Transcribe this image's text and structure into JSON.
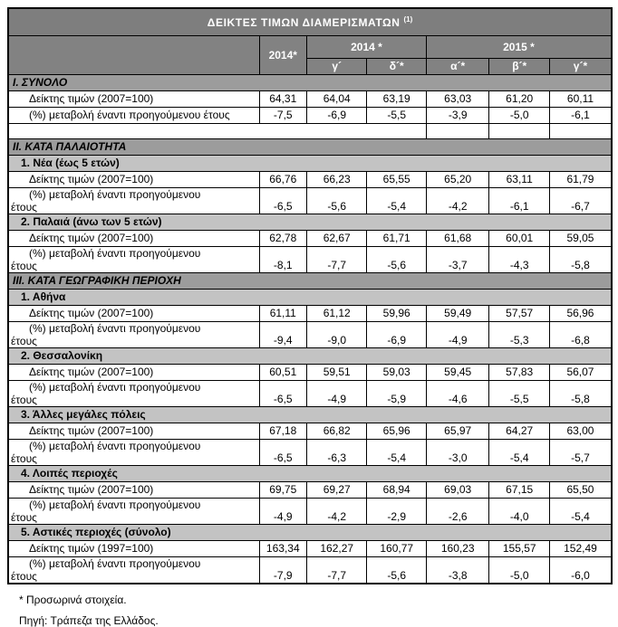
{
  "title": "ΔΕΙΚΤΕΣ  ΤΙΜΩΝ ΔΙΑΜΕΡΙΣΜΑΤΩΝ",
  "title_ref": "(1)",
  "columns": {
    "annual_2014": "2014*",
    "group_2014": "2014 *",
    "group_2015": "2015 *",
    "quarters": [
      "γ´",
      "δ´*",
      "α´*",
      "β´*",
      "γ´*"
    ]
  },
  "rows": [
    {
      "type": "section",
      "label": "Ι. ΣΥΝΟΛΟ"
    },
    {
      "type": "index",
      "label": "Δείκτης τιμών (2007=100)",
      "values": [
        "64,31",
        "64,04",
        "63,19",
        "63,03",
        "61,20",
        "60,11"
      ]
    },
    {
      "type": "pct1",
      "label": "(%) μεταβολή έναντι προηγούμενου έτους",
      "values": [
        "-7,5",
        "-6,9",
        "-5,5",
        "-3,9",
        "-5,0",
        "-6,1"
      ]
    },
    {
      "type": "spacer"
    },
    {
      "type": "section",
      "label": "ΙΙ. ΚΑΤΑ ΠΑΛΑΙΟΤΗΤΑ"
    },
    {
      "type": "subsection",
      "label": "1.  Νέα (έως 5 ετών)"
    },
    {
      "type": "index",
      "label": "Δείκτης τιμών (2007=100)",
      "values": [
        "66,76",
        "66,23",
        "65,55",
        "65,20",
        "63,11",
        "61,79"
      ]
    },
    {
      "type": "pct2",
      "label": "(%) μεταβολή έναντι προηγούμενου",
      "label2": "έτους",
      "values": [
        "-6,5",
        "-5,6",
        "-5,4",
        "-4,2",
        "-6,1",
        "-6,7"
      ]
    },
    {
      "type": "subsection",
      "label": "2. Παλαιά (άνω των 5 ετών)"
    },
    {
      "type": "index",
      "label": "Δείκτης τιμών (2007=100)",
      "values": [
        "62,78",
        "62,67",
        "61,71",
        "61,68",
        "60,01",
        "59,05"
      ]
    },
    {
      "type": "pct2",
      "label": "(%) μεταβολή έναντι προηγούμενου",
      "label2": "έτους",
      "values": [
        "-8,1",
        "-7,7",
        "-5,6",
        "-3,7",
        "-4,3",
        "-5,8"
      ]
    },
    {
      "type": "section",
      "label": "ΙΙΙ. ΚΑΤΑ ΓΕΩΓΡΑΦΙΚΗ ΠΕΡΙΟΧΗ"
    },
    {
      "type": "subsection",
      "label": "1.  Αθήνα"
    },
    {
      "type": "index",
      "label": "Δείκτης τιμών (2007=100)",
      "values": [
        "61,11",
        "61,12",
        "59,96",
        "59,49",
        "57,57",
        "56,96"
      ]
    },
    {
      "type": "pct2",
      "label": "(%) μεταβολή έναντι προηγούμενου",
      "label2": "έτους",
      "values": [
        "-9,4",
        "-9,0",
        "-6,9",
        "-4,9",
        "-5,3",
        "-6,8"
      ]
    },
    {
      "type": "subsection",
      "label": "2.  Θεσσαλονίκη"
    },
    {
      "type": "index",
      "label": "Δείκτης τιμών (2007=100)",
      "values": [
        "60,51",
        "59,51",
        "59,03",
        "59,45",
        "57,83",
        "56,07"
      ]
    },
    {
      "type": "pct2",
      "label": "(%) μεταβολή έναντι προηγούμενου",
      "label2": "έτους",
      "values": [
        "-6,5",
        "-4,9",
        "-5,9",
        "-4,6",
        "-5,5",
        "-5,8"
      ]
    },
    {
      "type": "subsection",
      "label": "3.  Άλλες μεγάλες πόλεις"
    },
    {
      "type": "index",
      "label": "Δείκτης τιμών (2007=100)",
      "values": [
        "67,18",
        "66,82",
        "65,96",
        "65,97",
        "64,27",
        "63,00"
      ]
    },
    {
      "type": "pct2",
      "label": "(%) μεταβολή έναντι προηγούμενου",
      "label2": "έτους",
      "values": [
        "-6,5",
        "-6,3",
        "-5,4",
        "-3,0",
        "-5,4",
        "-5,7"
      ]
    },
    {
      "type": "subsection",
      "label": "4.  Λοιπές περιοχές"
    },
    {
      "type": "index",
      "label": "Δείκτης τιμών (2007=100)",
      "values": [
        "69,75",
        "69,27",
        "68,94",
        "69,03",
        "67,15",
        "65,50"
      ]
    },
    {
      "type": "pct2",
      "label": "(%) μεταβολή έναντι προηγούμενου",
      "label2": "έτους",
      "values": [
        "-4,9",
        "-4,2",
        "-2,9",
        "-2,6",
        "-4,0",
        "-5,4"
      ]
    },
    {
      "type": "subsection",
      "label": "5.  Αστικές περιοχές (σύνολο)"
    },
    {
      "type": "index",
      "label": "Δείκτης τιμών (1997=100)",
      "values": [
        "163,34",
        "162,27",
        "160,77",
        "160,23",
        "155,57",
        "152,49"
      ]
    },
    {
      "type": "pct2",
      "label": "(%) μεταβολή έναντι προηγούμενου",
      "label2": "έτους",
      "values": [
        "-7,9",
        "-7,7",
        "-5,6",
        "-3,8",
        "-5,0",
        "-6,0"
      ]
    }
  ],
  "footnotes": {
    "provisional": "* Προσωρινά στοιχεία.",
    "source": "Πηγή: Τράπεζα της Ελλάδος."
  }
}
